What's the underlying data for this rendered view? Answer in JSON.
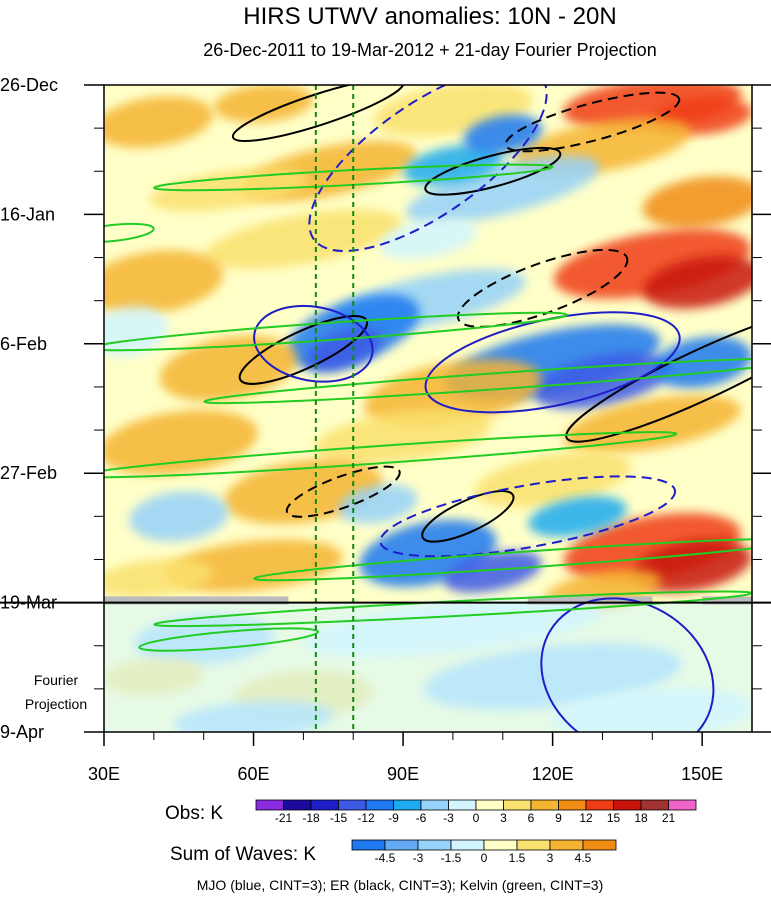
{
  "chart_data": {
    "type": "heatmap",
    "title": "HIRS UTWV anomalies: 10N - 20N",
    "subtitle": "26-Dec-2011 to 19-Mar-2012 + 21-day Fourier Projection",
    "x_ticks": [
      "30E",
      "60E",
      "90E",
      "120E",
      "150E"
    ],
    "x_tick_values": [
      30,
      60,
      90,
      120,
      150
    ],
    "x_range": [
      30,
      160
    ],
    "y_ticks": [
      "26-Dec",
      "16-Jan",
      "6-Feb",
      "27-Feb",
      "19-Mar",
      "9-Apr"
    ],
    "y_tick_days": [
      0,
      21,
      42,
      63,
      84,
      105
    ],
    "y_range_days": [
      0,
      105
    ],
    "projection_label_line1": "Fourier",
    "projection_label_line2": "Projection",
    "projection_start_day": 84,
    "reference_lines_lon": [
      72.5,
      80
    ],
    "obs_colorbar": {
      "label": "Obs: K",
      "levels": [
        "-21",
        "-18",
        "-15",
        "-12",
        "-9",
        "-6",
        "-3",
        "0",
        "3",
        "6",
        "9",
        "12",
        "15",
        "18",
        "21"
      ],
      "colors": [
        "#8a2be2",
        "#1c0a9c",
        "#1e1ec8",
        "#3c5ae6",
        "#1e78f0",
        "#1eaaf0",
        "#96d2fa",
        "#d2f5ff",
        "#ffffc8",
        "#fae16e",
        "#f5b432",
        "#f08c14",
        "#f03c14",
        "#c8140a",
        "#a03232",
        "#f064c8"
      ]
    },
    "waves_colorbar": {
      "label": "Sum of Waves: K",
      "levels": [
        "-4.5",
        "-3",
        "-1.5",
        "0",
        "1.5",
        "3",
        "4.5"
      ],
      "colors": [
        "#1e78f0",
        "#64aaf5",
        "#96d2fa",
        "#d2f5ff",
        "#ffffc8",
        "#fae16e",
        "#f5b432",
        "#f08c14"
      ]
    },
    "footer": "MJO (blue, CINT=3); ER (black, CINT=3); Kelvin (green, CINT=3)",
    "series": [
      {
        "name": "MJO",
        "color": "#1e1ec8"
      },
      {
        "name": "ER",
        "color": "#000000"
      },
      {
        "name": "Kelvin",
        "color": "#22cc22"
      }
    ]
  }
}
